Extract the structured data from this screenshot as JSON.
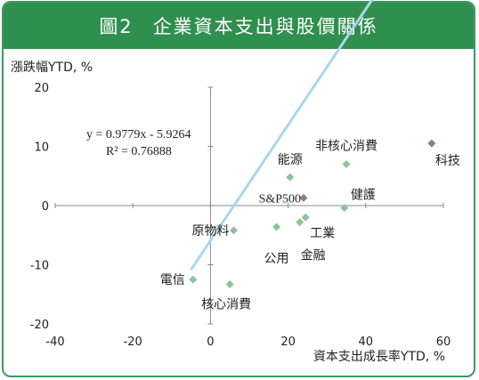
{
  "header": {
    "figure_no": "圖2",
    "title": "企業資本支出與股價關係"
  },
  "chart_data": {
    "type": "scatter",
    "title": "企業資本支出與股價關係",
    "xlabel": "資本支出成長率YTD, %",
    "ylabel": "漲跌幅YTD, %",
    "xlim": [
      -40,
      60
    ],
    "ylim": [
      -20,
      20
    ],
    "xticks": [
      "-40",
      "-20",
      "0",
      "20",
      "40",
      "60"
    ],
    "yticks": [
      "20",
      "10",
      "0",
      "-10",
      "-20"
    ],
    "grid": false,
    "points": [
      {
        "label": "科技",
        "x": 57,
        "y": 10.5,
        "color": "#9b7a67"
      },
      {
        "label": "非核心消費",
        "x": 35,
        "y": 7.0,
        "color": "#8cc49a"
      },
      {
        "label": "能源",
        "x": 20.5,
        "y": 4.8,
        "color": "#8cc49a"
      },
      {
        "label": "S&P500",
        "x": 24,
        "y": 1.3,
        "color": "#9b7a67"
      },
      {
        "label": "健護",
        "x": 34.5,
        "y": -0.4,
        "color": "#8cc49a"
      },
      {
        "label": "工業",
        "x": 24.5,
        "y": -2.0,
        "color": "#8cc49a"
      },
      {
        "label": "金融",
        "x": 23,
        "y": -2.8,
        "color": "#8cc49a"
      },
      {
        "label": "公用",
        "x": 17,
        "y": -3.6,
        "color": "#8cc49a"
      },
      {
        "label": "原物料",
        "x": 6,
        "y": -4.2,
        "color": "#8cc49a"
      },
      {
        "label": "電信",
        "x": -4.5,
        "y": -12.5,
        "color": "#8cc49a"
      },
      {
        "label": "核心消費",
        "x": 5,
        "y": -13.3,
        "color": "#8cc49a"
      }
    ],
    "trendline": {
      "slope": 0.9779,
      "intercept": -5.9264,
      "x_range": [
        -5,
        57
      ],
      "color": "#a9d8ea",
      "equation": "y = 0.9779x - 5.9264",
      "r2": "R² = 0.76888"
    }
  }
}
